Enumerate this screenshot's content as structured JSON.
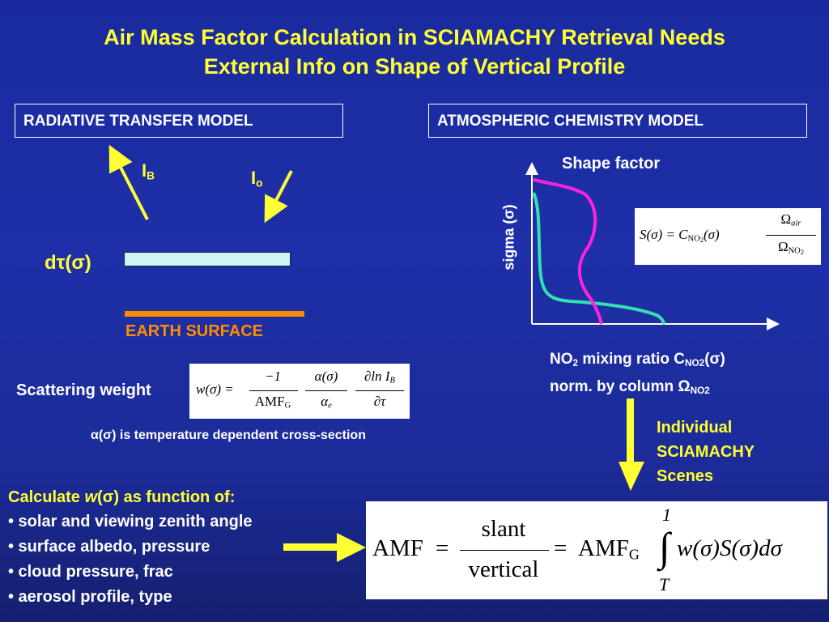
{
  "title": {
    "line1": "Air Mass Factor Calculation in SCIAMACHY Retrieval Needs",
    "line2": "External Info on Shape of Vertical Profile"
  },
  "rtm": {
    "box_label": "RADIATIVE TRANSFER MODEL",
    "ib_main": "I",
    "ib_sub": "B",
    "io_main": "I",
    "io_sub": "o",
    "dtau_label": "dτ(σ)",
    "earth_surface": "EARTH SURFACE",
    "scattering_weight_label": "Scattering weight",
    "cross_section_note": "α(σ) is temperature dependent cross-section",
    "formula_w": {
      "lhs": "w(σ) =",
      "num1": "−1",
      "den1": "AMF",
      "den1_sub": "G",
      "num2": "α(σ)",
      "den2": "α",
      "den2_sub": "e",
      "num3": "∂ln I",
      "num3_sub": "B",
      "den3": "∂τ"
    }
  },
  "acm": {
    "box_label": "ATMOSPHERIC CHEMISTRY MODEL",
    "shape_factor_label": "Shape factor",
    "y_axis_label": "sigma (σ)",
    "x_label_line1": {
      "a": "NO",
      "a_sub": "2",
      "b": " mixing ratio C",
      "b_sub": "NO2",
      "c": "(σ)"
    },
    "x_label_line2": {
      "a": "norm. by column Ω",
      "a_sub": "NO2"
    },
    "formula_s": {
      "lhs": "S(σ) = C",
      "lhs_sub": "NO",
      "lhs_sub2": "2",
      "arg": "(σ)",
      "num": "Ω",
      "num_sub": "air",
      "den": "Ω",
      "den_sub": "NO",
      "den_sub2": "2"
    },
    "curve_colors": {
      "cyan": "#33e0b0",
      "magenta": "#ff22dd"
    },
    "scenes_label": [
      "Individual",
      "SCIAMACHY",
      "Scenes"
    ]
  },
  "calc": {
    "heading_a": "Calculate ",
    "heading_w": "w",
    "heading_b": "(σ) as function of:",
    "items": [
      "• solar and viewing zenith angle",
      "• surface albedo, pressure",
      "• cloud pressure, frac",
      "• aerosol profile, type"
    ]
  },
  "amf_formula": {
    "amf": "AMF",
    "eq": "=",
    "num": "slant",
    "den": "vertical",
    "amfg": "AMF",
    "amfg_sub": "G",
    "upper": "1",
    "lower": "T",
    "integrand": "w(σ)S(σ)dσ"
  },
  "colors": {
    "title": "#ffff33",
    "accent_orange": "#ff8c00",
    "arrow_yellow": "#ffff33",
    "layer_fill": "#cdf5f8"
  }
}
